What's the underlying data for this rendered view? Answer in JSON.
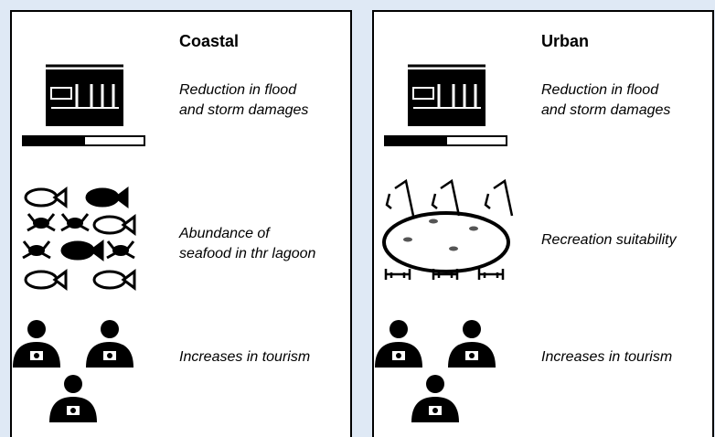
{
  "panels": [
    {
      "title": "Coastal",
      "items": [
        {
          "lines": [
            "Reduction in flood",
            "and storm damages"
          ]
        },
        {
          "lines": [
            "Abundance of",
            "seafood in thr lagoon"
          ]
        },
        {
          "lines": [
            "Increases in tourism"
          ]
        }
      ]
    },
    {
      "title": "Urban",
      "items": [
        {
          "lines": [
            "Reduction in flood",
            "and storm damages"
          ]
        },
        {
          "lines": [
            "Recreation suitability"
          ]
        },
        {
          "lines": [
            "Increases in tourism"
          ]
        }
      ]
    }
  ]
}
